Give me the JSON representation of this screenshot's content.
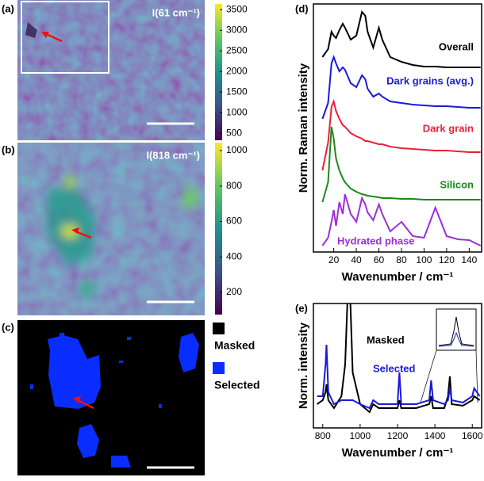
{
  "chart_data": [
    {
      "type": "heatmap",
      "panel_label": "(a)",
      "annotation": "I(61 cm⁻¹)",
      "colormap": "viridis",
      "zlim": [
        330,
        3640
      ],
      "zticks": [
        500,
        1000,
        1500,
        2000,
        2500,
        3000,
        3500
      ]
    },
    {
      "type": "heatmap",
      "panel_label": "(b)",
      "annotation": "I(818 cm⁻¹)",
      "colormap": "viridis",
      "zlim": [
        75,
        1045
      ],
      "zticks": [
        200,
        400,
        600,
        800,
        1000
      ]
    },
    {
      "type": "mask",
      "panel_label": "(c)",
      "legend": [
        {
          "name": "Masked",
          "color": "#000000"
        },
        {
          "name": "Selected",
          "color": "#0a2dff"
        }
      ]
    },
    {
      "type": "line",
      "panel_label": "(d)",
      "xlabel": "Wavenumber / cm⁻¹",
      "ylabel": "Norm. Raman intensity",
      "xlim": [
        2,
        151
      ],
      "xticks": [
        20,
        40,
        60,
        80,
        100,
        120,
        140
      ],
      "ylim": [
        0,
        313
      ],
      "x": [
        10,
        15,
        18,
        20,
        22,
        25,
        28,
        30,
        35,
        40,
        45,
        48,
        50,
        55,
        60,
        63,
        70,
        80,
        90,
        100,
        110,
        120,
        130,
        140,
        150
      ],
      "series": [
        {
          "name": "Overall",
          "color": "#000000",
          "values": [
            246,
            256,
            278,
            273,
            270,
            280,
            288,
            283,
            268,
            273,
            303,
            298,
            278,
            258,
            283,
            268,
            246,
            240,
            236,
            234,
            234,
            233,
            233,
            233,
            233
          ]
        },
        {
          "name": "Dark grains (avg.)",
          "color": "#1a1adb",
          "values": [
            168,
            188,
            238,
            246,
            238,
            228,
            233,
            230,
            213,
            208,
            223,
            218,
            206,
            196,
            200,
            196,
            190,
            188,
            186,
            185,
            184,
            184,
            183,
            182,
            182
          ]
        },
        {
          "name": "Dark grain",
          "color": "#e8213a",
          "values": [
            103,
            138,
            183,
            190,
            178,
            168,
            160,
            158,
            150,
            146,
            143,
            140,
            140,
            138,
            136,
            136,
            133,
            131,
            130,
            129,
            128,
            128,
            127,
            126,
            126
          ]
        },
        {
          "name": "Silicon",
          "color": "#1a8a1a",
          "values": [
            63,
            88,
            158,
            143,
            118,
            103,
            93,
            88,
            80,
            76,
            73,
            72,
            71,
            70,
            69,
            68,
            68,
            67,
            67,
            66,
            66,
            66,
            66,
            66,
            66
          ]
        },
        {
          "name": "Hydrated phase",
          "color": "#9b30d9",
          "values": [
            8,
            18,
            38,
            53,
            33,
            63,
            48,
            73,
            48,
            38,
            68,
            60,
            50,
            40,
            60,
            48,
            26,
            38,
            20,
            18,
            56,
            20,
            16,
            15,
            8
          ]
        }
      ]
    },
    {
      "type": "line",
      "panel_label": "(e)",
      "xlabel": "Wavenumber / cm⁻¹",
      "ylabel": "Norm. intensity",
      "xlim": [
        750,
        1650
      ],
      "xticks": [
        800,
        1000,
        1200,
        1400,
        1600
      ],
      "ylim": [
        0,
        157
      ],
      "x": [
        770,
        800,
        815,
        820,
        830,
        860,
        900,
        920,
        935,
        945,
        960,
        1000,
        1050,
        1070,
        1100,
        1200,
        1210,
        1220,
        1300,
        1370,
        1380,
        1390,
        1450,
        1470,
        1480,
        1490,
        1550,
        1600,
        1610,
        1640
      ],
      "series": [
        {
          "name": "Masked",
          "color": "#000000",
          "values": [
            30,
            35,
            45,
            55,
            35,
            25,
            40,
            80,
            180,
            180,
            70,
            30,
            20,
            30,
            25,
            25,
            35,
            25,
            25,
            30,
            40,
            25,
            25,
            40,
            65,
            30,
            28,
            35,
            40,
            35
          ]
        },
        {
          "name": "Selected",
          "color": "#1a1adb",
          "values": [
            40,
            40,
            80,
            105,
            45,
            30,
            35,
            35,
            35,
            35,
            35,
            30,
            25,
            35,
            30,
            30,
            70,
            30,
            30,
            35,
            60,
            35,
            30,
            35,
            50,
            35,
            32,
            40,
            50,
            40
          ]
        }
      ]
    }
  ]
}
